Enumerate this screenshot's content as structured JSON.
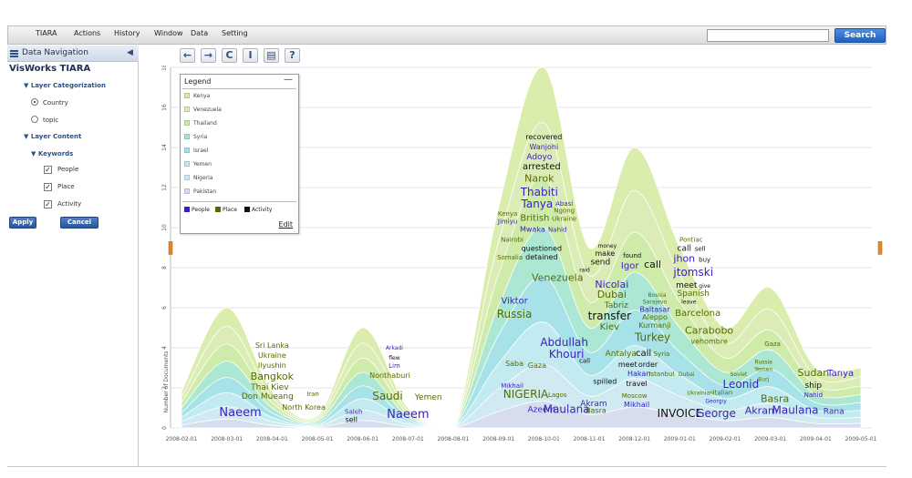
{
  "menu": {
    "items": [
      "TIARA",
      "Actions",
      "History",
      "Window",
      "Data",
      "Setting"
    ],
    "search_placeholder": "",
    "search_label": "Search"
  },
  "sidebar": {
    "nav_title": "Data Navigation",
    "collapse_glyph": "◀",
    "app_name": "VisWorks TIARA",
    "layer_categorization": {
      "heading": "▼ Layer Categorization",
      "options": [
        {
          "label": "Country",
          "selected": true
        },
        {
          "label": "topic",
          "selected": false
        }
      ]
    },
    "layer_content": {
      "heading": "▼ Layer Content",
      "keywords_heading": "▼ Keywords",
      "keywords": [
        {
          "label": "People",
          "checked": true
        },
        {
          "label": "Place",
          "checked": true
        },
        {
          "label": "Activity",
          "checked": true
        }
      ]
    },
    "apply_label": "Apply",
    "cancel_label": "Cancel"
  },
  "toolbar": {
    "back_glyph": "←",
    "forward_glyph": "→",
    "refresh_glyph": "C",
    "text_glyph": "I",
    "doc_glyph": "▤",
    "help_glyph": "?"
  },
  "legend": {
    "title": "Legend",
    "minimize_glyph": "—",
    "layers": [
      {
        "label": "Kenya",
        "color": "#d8eba6"
      },
      {
        "label": "Venezuela",
        "color": "#dcecb6"
      },
      {
        "label": "Thailand",
        "color": "#cdeaa8"
      },
      {
        "label": "Syria",
        "color": "#a8e6d6"
      },
      {
        "label": "Israel",
        "color": "#a7e2ea"
      },
      {
        "label": "Yemen",
        "color": "#c3ecf0"
      },
      {
        "label": "Nigeria",
        "color": "#d3e9f2"
      },
      {
        "label": "Pakistan",
        "color": "#d8dbee"
      }
    ],
    "kinds": [
      {
        "label": "People",
        "color": "#3a1ec0"
      },
      {
        "label": "Place",
        "color": "#556b00"
      },
      {
        "label": "Activity",
        "color": "#111111"
      }
    ],
    "edit_label": "Edit"
  },
  "chart_data": {
    "type": "area",
    "ylabel": "Number of Documents",
    "ylim": [
      0,
      18
    ],
    "yticks": [
      0,
      2,
      4,
      6,
      8,
      10,
      12,
      14,
      16,
      18
    ],
    "x": [
      "2008-02-01",
      "2008-03-01",
      "2008-04-01",
      "2008-05-01",
      "2008-06-01",
      "2008-07-01",
      "2008-08-01",
      "2008-09-01",
      "2008-10-01",
      "2008-11-01",
      "2008-12-01",
      "2009-01-01",
      "2009-02-01",
      "2009-03-01",
      "2009-04-01",
      "2009-05-01"
    ],
    "stack_totals": [
      {
        "x": "2008-02-01",
        "y": 1.8
      },
      {
        "x": "2008-03-01",
        "y": 6.0
      },
      {
        "x": "2008-04-01",
        "y": 1.8
      },
      {
        "x": "2008-05-01",
        "y": 0.6
      },
      {
        "x": "2008-06-01",
        "y": 5.0
      },
      {
        "x": "2008-07-01",
        "y": 1.0
      },
      {
        "x": "2008-08-01",
        "y": 0.0
      },
      {
        "x": "2008-09-01",
        "y": 11.0
      },
      {
        "x": "2008-10-01",
        "y": 18.0
      },
      {
        "x": "2008-11-01",
        "y": 9.0
      },
      {
        "x": "2008-12-01",
        "y": 14.0
      },
      {
        "x": "2009-01-01",
        "y": 9.0
      },
      {
        "x": "2009-02-01",
        "y": 5.0
      },
      {
        "x": "2009-03-01",
        "y": 7.0
      },
      {
        "x": "2009-04-01",
        "y": 3.0
      },
      {
        "x": "2009-05-01",
        "y": 3.0
      }
    ],
    "words": [
      {
        "t": "Naeem",
        "x": 1.3,
        "y": 0.6,
        "s": 13,
        "k": "people"
      },
      {
        "t": "Sri Lanka",
        "x": 2.0,
        "y": 4.0,
        "s": 8,
        "k": "place"
      },
      {
        "t": "Ukraine",
        "x": 2.0,
        "y": 3.5,
        "s": 8,
        "k": "place"
      },
      {
        "t": "Ilyushin",
        "x": 2.0,
        "y": 3.0,
        "s": 8,
        "k": "place"
      },
      {
        "t": "Bangkok",
        "x": 2.0,
        "y": 2.4,
        "s": 11,
        "k": "place"
      },
      {
        "t": "Thai Kiev",
        "x": 1.95,
        "y": 1.9,
        "s": 9,
        "k": "place"
      },
      {
        "t": "Don Mueang",
        "x": 1.9,
        "y": 1.45,
        "s": 9,
        "k": "place"
      },
      {
        "t": "Iran",
        "x": 2.9,
        "y": 1.6,
        "s": 7,
        "k": "place"
      },
      {
        "t": "North Korea",
        "x": 2.7,
        "y": 0.9,
        "s": 8,
        "k": "place"
      },
      {
        "t": "Saleh",
        "x": 3.8,
        "y": 0.7,
        "s": 7,
        "k": "people"
      },
      {
        "t": "sell",
        "x": 3.75,
        "y": 0.3,
        "s": 8,
        "k": "activity"
      },
      {
        "t": "Arkadi",
        "x": 4.7,
        "y": 3.9,
        "s": 6,
        "k": "people"
      },
      {
        "t": "flew",
        "x": 4.7,
        "y": 3.4,
        "s": 6,
        "k": "activity"
      },
      {
        "t": "Lim",
        "x": 4.7,
        "y": 3.0,
        "s": 7,
        "k": "people"
      },
      {
        "t": "Nonthaburi",
        "x": 4.6,
        "y": 2.5,
        "s": 8,
        "k": "place"
      },
      {
        "t": "Saudi",
        "x": 4.55,
        "y": 1.4,
        "s": 12,
        "k": "place"
      },
      {
        "t": "Yemen",
        "x": 5.45,
        "y": 1.4,
        "s": 9,
        "k": "place"
      },
      {
        "t": "Naeem",
        "x": 5.0,
        "y": 0.5,
        "s": 13,
        "k": "people"
      },
      {
        "t": "recovered",
        "x": 8.0,
        "y": 14.4,
        "s": 8,
        "k": "activity"
      },
      {
        "t": "Wanjohi",
        "x": 8.0,
        "y": 13.9,
        "s": 8,
        "k": "people"
      },
      {
        "t": "Adoyo",
        "x": 7.9,
        "y": 13.4,
        "s": 9,
        "k": "people"
      },
      {
        "t": "arrested",
        "x": 7.95,
        "y": 12.9,
        "s": 10,
        "k": "activity"
      },
      {
        "t": "Narok",
        "x": 7.9,
        "y": 12.3,
        "s": 11,
        "k": "place"
      },
      {
        "t": "Thabiti",
        "x": 7.9,
        "y": 11.6,
        "s": 12,
        "k": "people"
      },
      {
        "t": "Tanya",
        "x": 7.85,
        "y": 11.0,
        "s": 12,
        "k": "people"
      },
      {
        "t": "Abasi",
        "x": 8.45,
        "y": 11.1,
        "s": 7,
        "k": "people"
      },
      {
        "t": "Ngong",
        "x": 8.45,
        "y": 10.75,
        "s": 7,
        "k": "place"
      },
      {
        "t": "Ukraine",
        "x": 8.45,
        "y": 10.35,
        "s": 7,
        "k": "place"
      },
      {
        "t": "Kenya",
        "x": 7.2,
        "y": 10.6,
        "s": 7,
        "k": "place"
      },
      {
        "t": "Jimiyu",
        "x": 7.2,
        "y": 10.2,
        "s": 7,
        "k": "people"
      },
      {
        "t": "British",
        "x": 7.8,
        "y": 10.35,
        "s": 10,
        "k": "place"
      },
      {
        "t": "Mwaka",
        "x": 7.75,
        "y": 9.8,
        "s": 8,
        "k": "people"
      },
      {
        "t": "Nahid",
        "x": 8.3,
        "y": 9.8,
        "s": 7,
        "k": "people"
      },
      {
        "t": "Nairobi",
        "x": 7.3,
        "y": 9.3,
        "s": 7,
        "k": "place"
      },
      {
        "t": "questioned",
        "x": 7.95,
        "y": 8.85,
        "s": 8,
        "k": "activity"
      },
      {
        "t": "Somalia",
        "x": 7.25,
        "y": 8.4,
        "s": 7,
        "k": "place"
      },
      {
        "t": "detained",
        "x": 7.95,
        "y": 8.4,
        "s": 8,
        "k": "activity"
      },
      {
        "t": "money",
        "x": 9.4,
        "y": 9.0,
        "s": 6,
        "k": "activity"
      },
      {
        "t": "make",
        "x": 9.35,
        "y": 8.6,
        "s": 8,
        "k": "activity"
      },
      {
        "t": "send",
        "x": 9.25,
        "y": 8.15,
        "s": 9,
        "k": "activity"
      },
      {
        "t": "raid",
        "x": 8.9,
        "y": 7.8,
        "s": 6,
        "k": "activity"
      },
      {
        "t": "found",
        "x": 9.95,
        "y": 8.5,
        "s": 7,
        "k": "activity"
      },
      {
        "t": "Igor",
        "x": 9.9,
        "y": 7.95,
        "s": 10,
        "k": "people"
      },
      {
        "t": "call",
        "x": 10.4,
        "y": 8.0,
        "s": 11,
        "k": "activity"
      },
      {
        "t": "Venezuela",
        "x": 8.3,
        "y": 7.35,
        "s": 11,
        "k": "place"
      },
      {
        "t": "Viktor",
        "x": 7.35,
        "y": 6.2,
        "s": 10,
        "k": "people"
      },
      {
        "t": "Russia",
        "x": 7.35,
        "y": 5.5,
        "s": 12,
        "k": "place"
      },
      {
        "t": "Nicolai",
        "x": 9.5,
        "y": 7.0,
        "s": 11,
        "k": "people"
      },
      {
        "t": "Dubai",
        "x": 9.5,
        "y": 6.5,
        "s": 11,
        "k": "place"
      },
      {
        "t": "Tabriz",
        "x": 9.6,
        "y": 6.0,
        "s": 9,
        "k": "place"
      },
      {
        "t": "transfer",
        "x": 9.45,
        "y": 5.4,
        "s": 12,
        "k": "activity"
      },
      {
        "t": "Kiev",
        "x": 9.45,
        "y": 4.9,
        "s": 10,
        "k": "place"
      },
      {
        "t": "Bosnia",
        "x": 10.5,
        "y": 6.55,
        "s": 6,
        "k": "place"
      },
      {
        "t": "Sarajevo",
        "x": 10.45,
        "y": 6.2,
        "s": 6,
        "k": "place"
      },
      {
        "t": "Baltasar",
        "x": 10.45,
        "y": 5.8,
        "s": 8,
        "k": "people"
      },
      {
        "t": "Aleppo",
        "x": 10.45,
        "y": 5.4,
        "s": 8,
        "k": "place"
      },
      {
        "t": "Kurmanji",
        "x": 10.45,
        "y": 5.0,
        "s": 8,
        "k": "place"
      },
      {
        "t": "Turkey",
        "x": 10.4,
        "y": 4.35,
        "s": 12,
        "k": "place"
      },
      {
        "t": "Pontiac",
        "x": 11.25,
        "y": 9.3,
        "s": 7,
        "k": "place"
      },
      {
        "t": "call",
        "x": 11.1,
        "y": 8.85,
        "s": 9,
        "k": "activity"
      },
      {
        "t": "sell",
        "x": 11.45,
        "y": 8.85,
        "s": 7,
        "k": "activity"
      },
      {
        "t": "jhon",
        "x": 11.1,
        "y": 8.3,
        "s": 11,
        "k": "people"
      },
      {
        "t": "buy",
        "x": 11.55,
        "y": 8.3,
        "s": 7,
        "k": "activity"
      },
      {
        "t": "jtomski",
        "x": 11.3,
        "y": 7.6,
        "s": 12,
        "k": "people"
      },
      {
        "t": "meet",
        "x": 11.15,
        "y": 7.0,
        "s": 9,
        "k": "activity"
      },
      {
        "t": "give",
        "x": 11.55,
        "y": 7.0,
        "s": 6,
        "k": "activity"
      },
      {
        "t": "Spanish",
        "x": 11.3,
        "y": 6.6,
        "s": 9,
        "k": "place"
      },
      {
        "t": "leave",
        "x": 11.2,
        "y": 6.2,
        "s": 6,
        "k": "activity"
      },
      {
        "t": "Barcelona",
        "x": 11.4,
        "y": 5.6,
        "s": 10,
        "k": "place"
      },
      {
        "t": "Abdullah",
        "x": 8.45,
        "y": 4.1,
        "s": 12,
        "k": "people"
      },
      {
        "t": "Khouri",
        "x": 8.5,
        "y": 3.5,
        "s": 12,
        "k": "people"
      },
      {
        "t": "call",
        "x": 8.9,
        "y": 3.25,
        "s": 7,
        "k": "activity"
      },
      {
        "t": "Saba",
        "x": 7.35,
        "y": 3.1,
        "s": 8,
        "k": "place"
      },
      {
        "t": "Gaza",
        "x": 7.85,
        "y": 3.0,
        "s": 8,
        "k": "place"
      },
      {
        "t": "Antalya",
        "x": 9.7,
        "y": 3.6,
        "s": 9,
        "k": "place"
      },
      {
        "t": "call",
        "x": 10.2,
        "y": 3.6,
        "s": 10,
        "k": "activity"
      },
      {
        "t": "Syria",
        "x": 10.6,
        "y": 3.6,
        "s": 7,
        "k": "place"
      },
      {
        "t": "meet",
        "x": 9.85,
        "y": 3.05,
        "s": 8,
        "k": "activity"
      },
      {
        "t": "order",
        "x": 10.3,
        "y": 3.05,
        "s": 8,
        "k": "activity"
      },
      {
        "t": "Hakan",
        "x": 10.1,
        "y": 2.6,
        "s": 8,
        "k": "people"
      },
      {
        "t": "Istanbul",
        "x": 10.6,
        "y": 2.6,
        "s": 7,
        "k": "place"
      },
      {
        "t": "Dubai",
        "x": 11.15,
        "y": 2.6,
        "s": 6,
        "k": "place"
      },
      {
        "t": "spilled",
        "x": 9.35,
        "y": 2.2,
        "s": 8,
        "k": "activity"
      },
      {
        "t": "travel",
        "x": 10.05,
        "y": 2.1,
        "s": 8,
        "k": "activity"
      },
      {
        "t": "Mikhail",
        "x": 7.3,
        "y": 2.0,
        "s": 7,
        "k": "people"
      },
      {
        "t": "NIGERIA",
        "x": 7.6,
        "y": 1.5,
        "s": 12,
        "k": "place"
      },
      {
        "t": "Lagos",
        "x": 8.3,
        "y": 1.55,
        "s": 7,
        "k": "place"
      },
      {
        "t": "Carabobo",
        "x": 11.65,
        "y": 4.7,
        "s": 11,
        "k": "place"
      },
      {
        "t": "vehombre",
        "x": 11.65,
        "y": 4.2,
        "s": 8,
        "k": "place"
      },
      {
        "t": "Moscow",
        "x": 10.0,
        "y": 1.5,
        "s": 7,
        "k": "place"
      },
      {
        "t": "Mikhail",
        "x": 10.05,
        "y": 1.05,
        "s": 8,
        "k": "people"
      },
      {
        "t": "Akram",
        "x": 9.1,
        "y": 1.1,
        "s": 9,
        "k": "people"
      },
      {
        "t": "Ukrainian",
        "x": 11.45,
        "y": 1.65,
        "s": 6,
        "k": "place"
      },
      {
        "t": "Italian",
        "x": 11.95,
        "y": 1.65,
        "s": 7,
        "k": "place"
      },
      {
        "t": "Georgiy",
        "x": 11.8,
        "y": 1.25,
        "s": 6,
        "k": "people"
      },
      {
        "t": "Soviet",
        "x": 12.3,
        "y": 2.6,
        "s": 6,
        "k": "place"
      },
      {
        "t": "Leonid",
        "x": 12.35,
        "y": 2.0,
        "s": 12,
        "k": "people"
      },
      {
        "t": "Russia",
        "x": 12.85,
        "y": 3.2,
        "s": 6,
        "k": "place"
      },
      {
        "t": "Yemen",
        "x": 12.85,
        "y": 2.85,
        "s": 6,
        "k": "place"
      },
      {
        "t": "Burj",
        "x": 12.85,
        "y": 2.35,
        "s": 6,
        "k": "place"
      },
      {
        "t": "Gaza",
        "x": 13.05,
        "y": 4.1,
        "s": 7,
        "k": "place"
      },
      {
        "t": "Azeem",
        "x": 7.95,
        "y": 0.8,
        "s": 9,
        "k": "people"
      },
      {
        "t": "Maulana",
        "x": 8.5,
        "y": 0.75,
        "s": 12,
        "k": "people"
      },
      {
        "t": "Basra",
        "x": 9.15,
        "y": 0.75,
        "s": 8,
        "k": "place"
      },
      {
        "t": "INVOICE",
        "x": 11.0,
        "y": 0.55,
        "s": 12,
        "k": "activity"
      },
      {
        "t": "George",
        "x": 11.8,
        "y": 0.55,
        "s": 12,
        "k": "people"
      },
      {
        "t": "Basra",
        "x": 13.1,
        "y": 1.3,
        "s": 11,
        "k": "place"
      },
      {
        "t": "Akram",
        "x": 12.8,
        "y": 0.7,
        "s": 11,
        "k": "people"
      },
      {
        "t": "Maulana",
        "x": 13.55,
        "y": 0.7,
        "s": 12,
        "k": "people"
      },
      {
        "t": "Rana",
        "x": 14.4,
        "y": 0.7,
        "s": 9,
        "k": "people"
      },
      {
        "t": "Sudan",
        "x": 13.95,
        "y": 2.6,
        "s": 11,
        "k": "place"
      },
      {
        "t": "Tanya",
        "x": 14.55,
        "y": 2.6,
        "s": 10,
        "k": "people"
      },
      {
        "t": "ship",
        "x": 13.95,
        "y": 2.0,
        "s": 9,
        "k": "activity"
      },
      {
        "t": "Nahid",
        "x": 13.95,
        "y": 1.55,
        "s": 7,
        "k": "people"
      }
    ]
  }
}
